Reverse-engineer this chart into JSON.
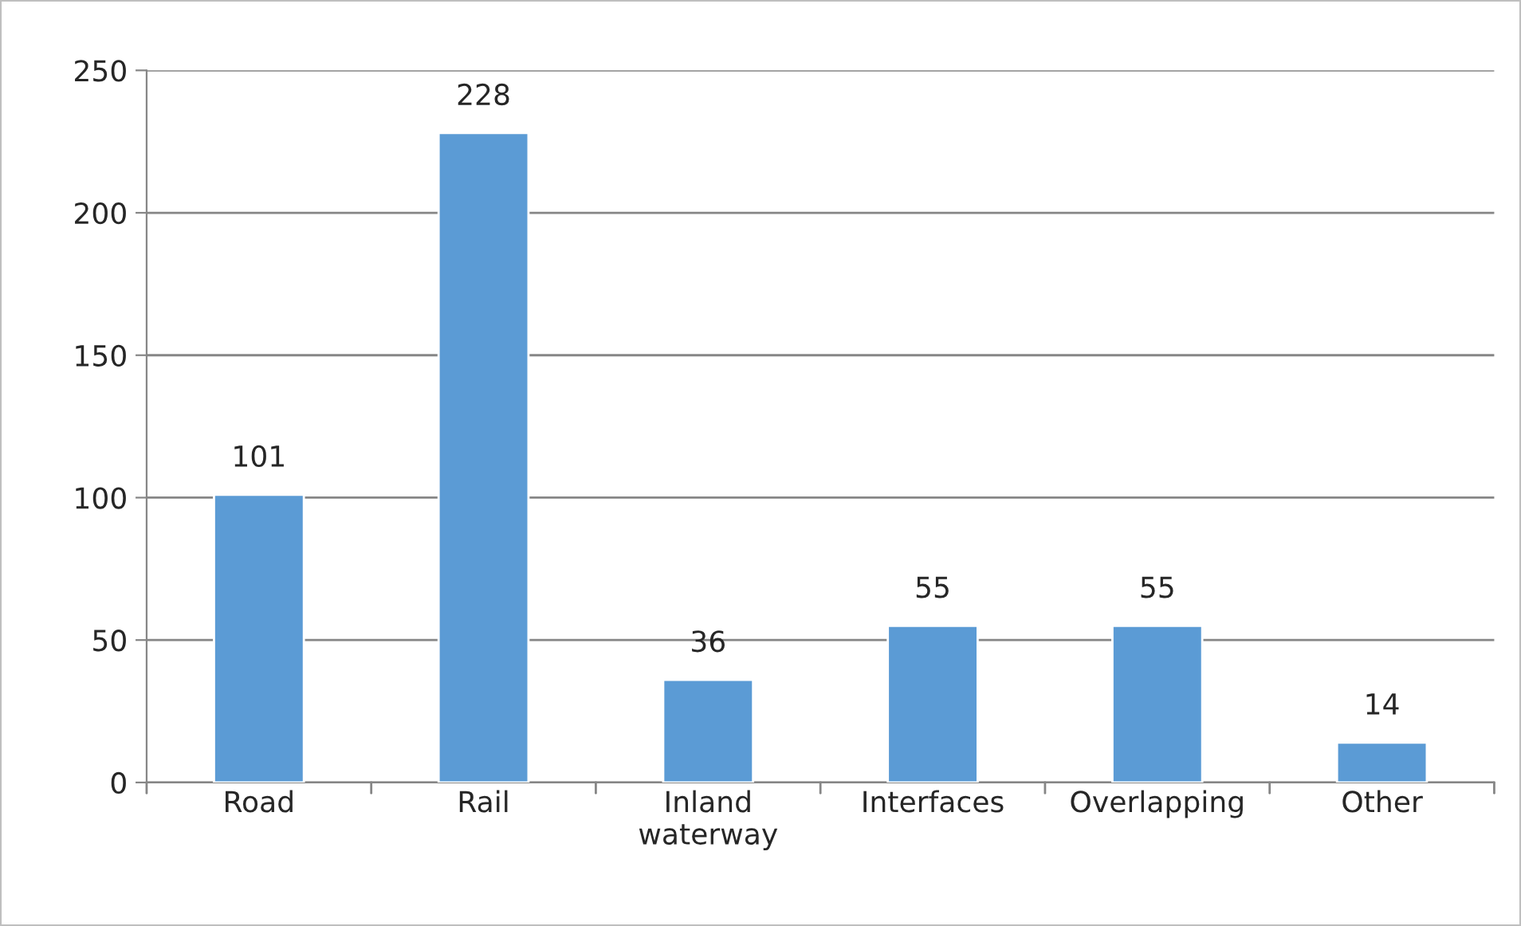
{
  "chart_data": {
    "type": "bar",
    "categories": [
      "Road",
      "Rail",
      "Inland\nwaterway",
      "Interfaces",
      "Overlapping",
      "Other"
    ],
    "values": [
      101,
      228,
      36,
      55,
      55,
      14
    ],
    "color": "#5b9bd5",
    "ylim": [
      0,
      250
    ],
    "yticks": [
      0,
      50,
      100,
      150,
      200,
      250
    ],
    "grid": "y",
    "data_labels": true
  }
}
